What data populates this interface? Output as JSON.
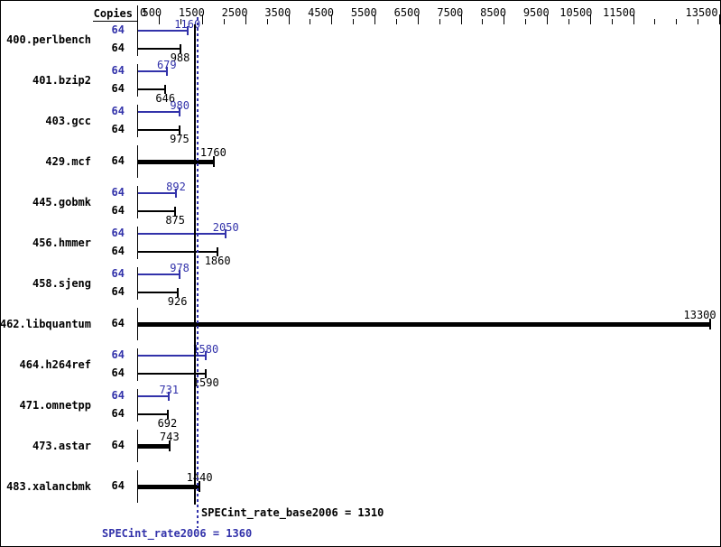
{
  "colors": {
    "peak_blue": "#3232aa",
    "base_black": "#000000"
  },
  "header": {
    "copies_label": "Copies"
  },
  "chart_data": {
    "type": "bar",
    "orientation": "horizontal",
    "title": "",
    "x_axis": {
      "min": 0,
      "max": 13500,
      "tick_interval": 500,
      "labeled_ticks": [
        0,
        500,
        1500,
        2500,
        3500,
        4500,
        5500,
        6500,
        7500,
        8500,
        9500,
        10500,
        11500,
        13500
      ],
      "unlabeled_long_tick_exception": 12500
    },
    "series": [
      {
        "name": "peak",
        "color": "#3232aa"
      },
      {
        "name": "base",
        "color": "#000000"
      }
    ],
    "benchmarks": [
      {
        "name": "400.perlbench",
        "copies": 64,
        "peak": 1160,
        "base": 988,
        "peak_equals_base": false
      },
      {
        "name": "401.bzip2",
        "copies": 64,
        "peak": 679,
        "base": 646,
        "peak_equals_base": false
      },
      {
        "name": "403.gcc",
        "copies": 64,
        "peak": 980,
        "base": 975,
        "peak_equals_base": false
      },
      {
        "name": "429.mcf",
        "copies": 64,
        "peak": 1760,
        "base": 1760,
        "peak_equals_base": true
      },
      {
        "name": "445.gobmk",
        "copies": 64,
        "peak": 892,
        "base": 875,
        "peak_equals_base": false
      },
      {
        "name": "456.hmmer",
        "copies": 64,
        "peak": 2050,
        "base": 1860,
        "peak_equals_base": false
      },
      {
        "name": "458.sjeng",
        "copies": 64,
        "peak": 978,
        "base": 926,
        "peak_equals_base": false
      },
      {
        "name": "462.libquantum",
        "copies": 64,
        "peak": 13300,
        "base": 13300,
        "peak_equals_base": true
      },
      {
        "name": "464.h264ref",
        "copies": 64,
        "peak": 1580,
        "base": 1590,
        "peak_equals_base": false
      },
      {
        "name": "471.omnetpp",
        "copies": 64,
        "peak": 731,
        "base": 692,
        "peak_equals_base": false
      },
      {
        "name": "473.astar",
        "copies": 64,
        "peak": 743,
        "base": 743,
        "peak_equals_base": true
      },
      {
        "name": "483.xalancbmk",
        "copies": 64,
        "peak": 1440,
        "base": 1440,
        "peak_equals_base": true
      }
    ],
    "means": {
      "base": 1310,
      "peak": 1360,
      "base_label": "SPECint_rate_base2006 = 1310",
      "peak_label": "SPECint_rate2006 = 1360"
    }
  }
}
